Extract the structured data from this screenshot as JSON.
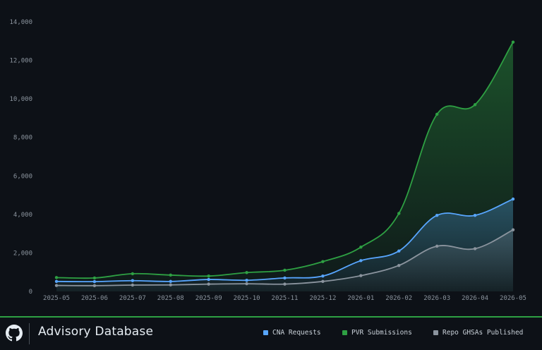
{
  "chart_data": {
    "type": "area",
    "categories": [
      "2025-05",
      "2025-06",
      "2025-07",
      "2025-08",
      "2025-09",
      "2025-10",
      "2025-11",
      "2025-12",
      "2026-01",
      "2026-02",
      "2026-03",
      "2026-04",
      "2026-05"
    ],
    "y_ticks": [
      "0",
      "2,000",
      "4,000",
      "6,000",
      "8,000",
      "10,000",
      "12,000",
      "14,000"
    ],
    "ylim": [
      0,
      14000
    ],
    "grid": false,
    "legend_position": "bottom-right",
    "series": [
      {
        "name": "CNA Requests",
        "color": "#58a6ff",
        "values": [
          520,
          510,
          560,
          520,
          620,
          580,
          700,
          800,
          1600,
          2100,
          3950,
          3950,
          4800
        ]
      },
      {
        "name": "PVR Submissions",
        "color": "#2ea043",
        "values": [
          720,
          700,
          920,
          850,
          800,
          980,
          1100,
          1550,
          2300,
          4050,
          9200,
          9700,
          12950
        ]
      },
      {
        "name": "Repo GHSAs Published",
        "color": "#8b949e",
        "values": [
          310,
          300,
          330,
          340,
          380,
          400,
          380,
          520,
          820,
          1350,
          2350,
          2220,
          3200
        ]
      }
    ]
  },
  "footer": {
    "brand": "Advisory Database",
    "logo_icon": "github-icon",
    "border_color": "#2ea043"
  }
}
